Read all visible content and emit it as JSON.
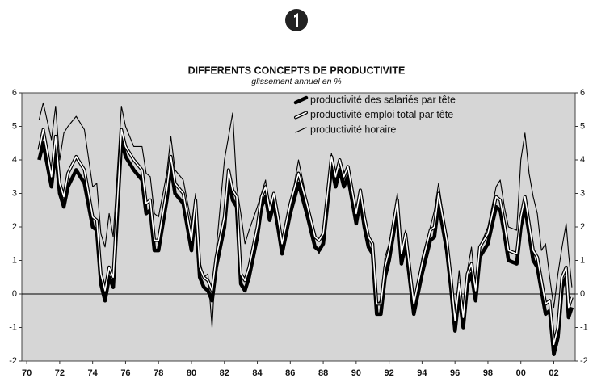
{
  "chart_data": {
    "type": "line",
    "title": "DIFFERENTS CONCEPTS DE PRODUCTIVITE",
    "subtitle": "glissement annuel en %",
    "x": [
      1970.75,
      1971.0,
      1971.5,
      1971.75,
      1972.0,
      1972.25,
      1972.5,
      1973.0,
      1973.5,
      1974.0,
      1974.25,
      1974.5,
      1974.75,
      1975.0,
      1975.25,
      1975.75,
      1976.0,
      1976.5,
      1977.0,
      1977.25,
      1977.5,
      1977.75,
      1978.0,
      1978.5,
      1978.75,
      1979.0,
      1979.5,
      1980.0,
      1980.25,
      1980.5,
      1980.75,
      1981.0,
      1981.25,
      1981.5,
      1982.0,
      1982.25,
      1982.5,
      1982.75,
      1983.0,
      1983.25,
      1983.5,
      1984.0,
      1984.25,
      1984.5,
      1984.75,
      1985.0,
      1985.25,
      1985.5,
      1986.0,
      1986.5,
      1987.0,
      1987.5,
      1987.75,
      1988.0,
      1988.5,
      1988.75,
      1989.0,
      1989.25,
      1989.5,
      1990.0,
      1990.25,
      1990.5,
      1990.75,
      1991.0,
      1991.25,
      1991.5,
      1991.75,
      1992.0,
      1992.5,
      1992.75,
      1993.0,
      1993.5,
      1993.75,
      1994.0,
      1994.5,
      1994.75,
      1995.0,
      1995.5,
      1995.75,
      1996.0,
      1996.25,
      1996.5,
      1996.75,
      1997.0,
      1997.25,
      1997.5,
      1998.0,
      1998.5,
      1998.75,
      1999.0,
      1999.25,
      1999.75,
      2000.0,
      2000.25,
      2000.5,
      2000.75,
      2001.0,
      2001.25,
      2001.5,
      2001.75,
      2002.0,
      2002.25,
      2002.5,
      2002.75,
      2002.9,
      2003.1
    ],
    "series": [
      {
        "name": "productivité des salariés par tête",
        "color": "#000000",
        "style": "thick",
        "values": [
          4.0,
          4.5,
          3.2,
          4.3,
          3.0,
          2.6,
          3.2,
          3.7,
          3.3,
          2.0,
          1.9,
          0.3,
          -0.2,
          0.5,
          0.2,
          4.6,
          4.1,
          3.7,
          3.4,
          2.4,
          2.5,
          1.3,
          1.3,
          2.8,
          3.8,
          3.0,
          2.7,
          1.3,
          2.5,
          0.5,
          0.2,
          0.1,
          -0.2,
          0.8,
          2.0,
          3.4,
          2.8,
          2.6,
          0.3,
          0.1,
          0.5,
          1.7,
          2.6,
          2.9,
          2.2,
          2.7,
          2.0,
          1.2,
          2.4,
          3.3,
          2.4,
          1.4,
          1.3,
          1.5,
          3.8,
          3.2,
          3.7,
          3.2,
          3.5,
          2.1,
          2.8,
          2.0,
          1.4,
          1.2,
          -0.6,
          -0.6,
          0.5,
          1.0,
          2.5,
          0.9,
          1.5,
          -0.6,
          0.0,
          0.6,
          1.6,
          1.7,
          2.7,
          1.3,
          0.2,
          -1.1,
          0.0,
          -1.0,
          0.3,
          0.6,
          -0.2,
          1.1,
          1.5,
          2.6,
          2.5,
          1.8,
          1.0,
          0.9,
          2.0,
          2.6,
          1.8,
          1.0,
          0.8,
          0.1,
          -0.6,
          -0.5,
          -1.8,
          -1.3,
          0.2,
          0.5,
          -0.7,
          -0.4
        ]
      },
      {
        "name": "productivité emploi total par tête",
        "color": "#000000",
        "style": "double",
        "values": [
          4.3,
          4.9,
          3.5,
          4.7,
          3.3,
          2.9,
          3.6,
          4.1,
          3.7,
          2.3,
          2.2,
          0.6,
          0.1,
          0.8,
          0.5,
          4.9,
          4.4,
          4.0,
          3.7,
          2.7,
          2.8,
          1.6,
          1.6,
          3.1,
          4.1,
          3.3,
          3.0,
          1.6,
          2.8,
          0.8,
          0.5,
          0.4,
          0.1,
          1.1,
          2.3,
          3.7,
          3.1,
          2.9,
          0.6,
          0.4,
          0.8,
          2.0,
          2.9,
          3.2,
          2.5,
          3.0,
          2.3,
          1.5,
          2.7,
          3.6,
          2.7,
          1.7,
          1.6,
          1.8,
          4.1,
          3.5,
          4.0,
          3.5,
          3.8,
          2.4,
          3.1,
          2.3,
          1.7,
          1.5,
          -0.3,
          -0.3,
          0.8,
          1.3,
          2.8,
          1.2,
          1.8,
          -0.3,
          0.3,
          0.9,
          1.9,
          2.0,
          3.0,
          1.6,
          0.5,
          -0.8,
          0.3,
          -0.7,
          0.6,
          0.9,
          0.1,
          1.4,
          1.8,
          2.9,
          2.8,
          2.1,
          1.3,
          1.2,
          2.3,
          2.9,
          2.1,
          1.3,
          1.1,
          0.4,
          -0.3,
          -0.2,
          -1.5,
          -1.0,
          0.5,
          0.8,
          -0.4,
          -0.1
        ]
      },
      {
        "name": "productivité horaire",
        "color": "#000000",
        "style": "thin",
        "values": [
          5.2,
          5.7,
          4.6,
          5.6,
          4.0,
          4.8,
          5.0,
          5.3,
          4.9,
          3.2,
          3.3,
          1.8,
          1.4,
          2.4,
          1.7,
          5.6,
          5.0,
          4.4,
          4.4,
          3.6,
          3.5,
          2.4,
          2.3,
          3.6,
          4.7,
          3.7,
          3.4,
          2.1,
          3.0,
          1.0,
          0.5,
          0.6,
          -1.0,
          1.3,
          4.0,
          4.7,
          5.4,
          3.2,
          2.4,
          1.5,
          1.9,
          2.6,
          3.0,
          3.4,
          2.3,
          2.9,
          2.1,
          1.4,
          2.6,
          4.0,
          2.8,
          1.5,
          1.2,
          1.7,
          4.2,
          3.3,
          4.0,
          3.4,
          3.7,
          2.3,
          3.1,
          2.3,
          1.7,
          1.4,
          -0.3,
          -0.2,
          1.1,
          1.5,
          3.0,
          1.4,
          1.9,
          -0.3,
          0.4,
          1.1,
          2.0,
          2.5,
          3.3,
          1.7,
          0.6,
          -0.6,
          0.7,
          -0.7,
          0.7,
          1.4,
          0.1,
          1.4,
          2.0,
          3.2,
          3.4,
          2.6,
          2.0,
          1.9,
          4.0,
          4.8,
          3.6,
          2.9,
          2.4,
          1.3,
          1.5,
          0.5,
          -0.4,
          0.6,
          1.4,
          2.1,
          1.2,
          0.2
        ]
      }
    ],
    "xlim": [
      1969.7,
      2003.3
    ],
    "xticks": [
      {
        "value": 1970,
        "label": "70"
      },
      {
        "value": 1972,
        "label": "72"
      },
      {
        "value": 1974,
        "label": "74"
      },
      {
        "value": 1976,
        "label": "76"
      },
      {
        "value": 1978,
        "label": "78"
      },
      {
        "value": 1980,
        "label": "80"
      },
      {
        "value": 1982,
        "label": "82"
      },
      {
        "value": 1984,
        "label": "84"
      },
      {
        "value": 1986,
        "label": "86"
      },
      {
        "value": 1988,
        "label": "88"
      },
      {
        "value": 1990,
        "label": "90"
      },
      {
        "value": 1992,
        "label": "92"
      },
      {
        "value": 1994,
        "label": "94"
      },
      {
        "value": 1996,
        "label": "96"
      },
      {
        "value": 1998,
        "label": "98"
      },
      {
        "value": 2000,
        "label": "00"
      },
      {
        "value": 2002,
        "label": "02"
      }
    ],
    "ylim": [
      -2,
      6
    ],
    "yticks": [
      -2,
      -1,
      0,
      1,
      2,
      3,
      4,
      5,
      6
    ],
    "hline": 0,
    "grid": false,
    "legend": "upper center",
    "background": "#d6d6d6"
  }
}
